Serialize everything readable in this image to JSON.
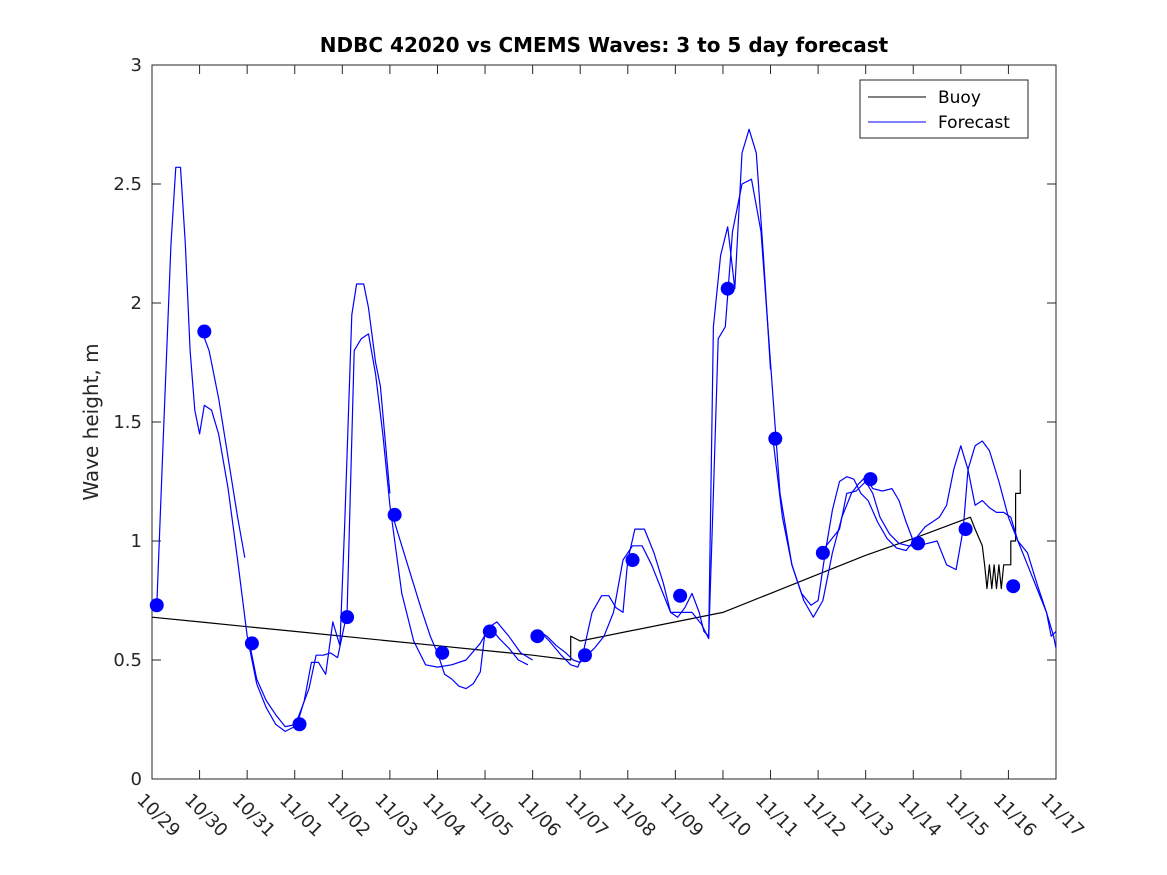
{
  "chart_data": {
    "type": "line",
    "title": "NDBC 42020 vs CMEMS Waves: 3 to 5 day forecast",
    "xlabel": "",
    "ylabel": "Wave height, m",
    "xlim": [
      0,
      19
    ],
    "ylim": [
      0,
      3
    ],
    "grid": false,
    "legend_position": "top-right",
    "x_tick_labels": [
      "10/29",
      "10/30",
      "10/31",
      "11/01",
      "11/02",
      "11/03",
      "11/04",
      "11/05",
      "11/06",
      "11/07",
      "11/08",
      "11/09",
      "11/10",
      "11/11",
      "11/12",
      "11/13",
      "11/14",
      "11/15",
      "11/16",
      "11/17"
    ],
    "y_ticks": [
      0,
      0.5,
      1,
      1.5,
      2,
      2.5,
      3
    ],
    "y_tick_labels": [
      "0",
      "0.5",
      "1",
      "1.5",
      "2",
      "2.5",
      "3"
    ],
    "colors": {
      "buoy": "#000000",
      "forecast": "#0000ff",
      "axes": "#262626"
    },
    "legend": [
      {
        "name": "Buoy",
        "color": "#000000"
      },
      {
        "name": "Forecast",
        "color": "#0000ff"
      }
    ],
    "series": [
      {
        "name": "Buoy",
        "kind": "line",
        "color": "#000000",
        "x": [
          0,
          1,
          2,
          3,
          4,
          5,
          6,
          7,
          8,
          8.8,
          8.8,
          9.0,
          10.0,
          11.0,
          12.0,
          13.0,
          14.0,
          15.0,
          16.0,
          17.2,
          17.3,
          17.45,
          17.5,
          17.55,
          17.6,
          17.65,
          17.7,
          17.75,
          17.8,
          17.85,
          17.9,
          18.0,
          18.05,
          18.05,
          18.1,
          18.15,
          18.15,
          18.25,
          18.25
        ],
        "y": [
          0.68,
          0.66,
          0.64,
          0.62,
          0.6,
          0.58,
          0.56,
          0.54,
          0.52,
          0.5,
          0.6,
          0.58,
          0.62,
          0.66,
          0.7,
          0.78,
          0.86,
          0.94,
          1.01,
          1.1,
          1.05,
          0.98,
          0.9,
          0.8,
          0.9,
          0.8,
          0.9,
          0.8,
          0.9,
          0.8,
          0.9,
          0.9,
          0.9,
          1.0,
          1.0,
          1.0,
          1.2,
          1.2,
          1.3
        ]
      },
      {
        "name": "Forecast",
        "kind": "line",
        "color": "#0000ff",
        "x": [
          0.1,
          0.25,
          0.4,
          0.5,
          0.6,
          0.7,
          0.8,
          0.9,
          1.0,
          1.1,
          1.25,
          1.4,
          1.6,
          1.8,
          2.0,
          2.2,
          2.4,
          2.6,
          2.8,
          3.0
        ],
        "y": [
          0.73,
          1.5,
          2.25,
          2.57,
          2.57,
          2.25,
          1.8,
          1.55,
          1.45,
          1.57,
          1.55,
          1.45,
          1.22,
          0.92,
          0.6,
          0.4,
          0.3,
          0.23,
          0.2,
          0.22
        ]
      },
      {
        "name": "Forecast",
        "kind": "line",
        "color": "#0000ff",
        "x": [
          1.05,
          1.2,
          1.4,
          1.6,
          1.8,
          1.95
        ],
        "y": [
          1.88,
          1.8,
          1.6,
          1.35,
          1.1,
          0.93
        ]
      },
      {
        "name": "Forecast",
        "kind": "line",
        "color": "#0000ff",
        "x": [
          2.05,
          2.2,
          2.4,
          2.6,
          2.8,
          3.05,
          3.2,
          3.35,
          3.5,
          3.65,
          3.8,
          3.95,
          4.05,
          4.2,
          4.3,
          4.45,
          4.55,
          4.7,
          4.8,
          5.0
        ],
        "y": [
          0.57,
          0.42,
          0.33,
          0.27,
          0.22,
          0.23,
          0.33,
          0.49,
          0.49,
          0.44,
          0.66,
          0.56,
          1.07,
          1.95,
          2.08,
          2.08,
          1.98,
          1.75,
          1.65,
          1.2
        ]
      },
      {
        "name": "Forecast",
        "kind": "line",
        "color": "#0000ff",
        "x": [
          3.0,
          3.15,
          3.3,
          3.45,
          3.6,
          3.75,
          3.9,
          4.1,
          4.25,
          4.4,
          4.55,
          4.7,
          4.85,
          5.0,
          5.25,
          5.5,
          5.75,
          6.0,
          6.3,
          6.6,
          6.9,
          7.1,
          7.25,
          7.5,
          7.75,
          8.0
        ],
        "y": [
          0.22,
          0.3,
          0.38,
          0.52,
          0.52,
          0.53,
          0.51,
          0.7,
          1.8,
          1.85,
          1.87,
          1.7,
          1.45,
          1.15,
          0.78,
          0.58,
          0.48,
          0.47,
          0.48,
          0.5,
          0.57,
          0.64,
          0.66,
          0.6,
          0.53,
          0.5
        ]
      },
      {
        "name": "Forecast",
        "kind": "line",
        "color": "#0000ff",
        "x": [
          5.05,
          5.25,
          5.45,
          5.65,
          5.85,
          6.0,
          6.15,
          6.3,
          6.45,
          6.6,
          6.75,
          6.9,
          7.0,
          7.1,
          7.3,
          7.5,
          7.7,
          7.9
        ],
        "y": [
          1.11,
          0.98,
          0.85,
          0.72,
          0.6,
          0.53,
          0.44,
          0.42,
          0.39,
          0.38,
          0.4,
          0.45,
          0.62,
          0.64,
          0.59,
          0.55,
          0.5,
          0.48
        ]
      },
      {
        "name": "Forecast",
        "kind": "line",
        "color": "#0000ff",
        "x": [
          8.0,
          8.15,
          8.35,
          8.6,
          8.8,
          8.95,
          9.05,
          9.25,
          9.45,
          9.6,
          9.75,
          9.9,
          10.0,
          10.15,
          10.35,
          10.55,
          10.75,
          10.9,
          11.05,
          11.2,
          11.35,
          11.55,
          11.7,
          11.8,
          11.9,
          12.05,
          12.2,
          12.4,
          12.6,
          12.8,
          13.0,
          13.2,
          13.45,
          13.7,
          13.9,
          14.1,
          14.3,
          14.5,
          14.7,
          14.85,
          15.0,
          15.15,
          15.35,
          15.55,
          15.7,
          15.85,
          16.0
        ],
        "y": [
          0.6,
          0.62,
          0.58,
          0.52,
          0.48,
          0.47,
          0.52,
          0.7,
          0.77,
          0.77,
          0.72,
          0.7,
          0.92,
          1.05,
          1.05,
          0.95,
          0.82,
          0.7,
          0.7,
          0.7,
          0.7,
          0.65,
          0.59,
          1.2,
          1.85,
          1.9,
          2.3,
          2.5,
          2.52,
          2.3,
          1.75,
          1.2,
          0.9,
          0.75,
          0.68,
          0.75,
          0.95,
          1.1,
          1.2,
          1.24,
          1.27,
          1.22,
          1.21,
          1.22,
          1.17,
          1.08,
          1.0
        ]
      },
      {
        "name": "Forecast",
        "kind": "line",
        "color": "#0000ff",
        "x": [
          8.15,
          8.3,
          8.5,
          8.7,
          8.85,
          9.0,
          9.15,
          9.3,
          9.5,
          9.7,
          9.9,
          10.1,
          10.3,
          10.5,
          10.7,
          10.9,
          11.05,
          11.2,
          11.35,
          11.5,
          11.6,
          11.7,
          11.8,
          11.95,
          12.1,
          12.25,
          12.4,
          12.55,
          12.7,
          12.85,
          13.0
        ],
        "y": [
          0.62,
          0.6,
          0.56,
          0.53,
          0.5,
          0.49,
          0.52,
          0.55,
          0.6,
          0.7,
          0.92,
          0.98,
          0.98,
          0.9,
          0.8,
          0.7,
          0.68,
          0.72,
          0.78,
          0.7,
          0.62,
          0.6,
          1.9,
          2.2,
          2.32,
          2.06,
          2.63,
          2.73,
          2.63,
          2.2,
          1.72
        ]
      },
      {
        "name": "Forecast",
        "kind": "line",
        "color": "#0000ff",
        "x": [
          13.05,
          13.25,
          13.45,
          13.65,
          13.85,
          14.0,
          14.15,
          14.3,
          14.45,
          14.6,
          14.75,
          14.9,
          15.05,
          15.25,
          15.45,
          15.65,
          15.85,
          16.05,
          16.25,
          16.4,
          16.55,
          16.7,
          16.85,
          17.0,
          17.15,
          17.3,
          17.45,
          17.6,
          17.75,
          17.9,
          18.05,
          18.2,
          18.4,
          18.6,
          18.8,
          18.9,
          19.0
        ],
        "y": [
          1.43,
          1.1,
          0.9,
          0.78,
          0.73,
          0.75,
          0.95,
          1.13,
          1.25,
          1.27,
          1.26,
          1.2,
          1.17,
          1.08,
          1.01,
          0.97,
          0.96,
          1.01,
          1.06,
          1.08,
          1.1,
          1.15,
          1.3,
          1.4,
          1.3,
          1.15,
          1.17,
          1.14,
          1.12,
          1.12,
          1.1,
          1.0,
          0.9,
          0.8,
          0.7,
          0.6,
          0.62
        ]
      },
      {
        "name": "Forecast",
        "kind": "line",
        "color": "#0000ff",
        "x": [
          14.05,
          14.25,
          14.45,
          14.6,
          14.8,
          15.0,
          15.15,
          15.3,
          15.5,
          15.7,
          15.9,
          16.1,
          16.3,
          16.5,
          16.7,
          16.9,
          17.05,
          17.15,
          17.3,
          17.45,
          17.6,
          17.8,
          18.0,
          18.2,
          18.4,
          18.6,
          18.8,
          18.95,
          19.0
        ],
        "y": [
          0.95,
          1.0,
          1.05,
          1.2,
          1.21,
          1.25,
          1.2,
          1.1,
          1.03,
          0.99,
          0.98,
          0.98,
          0.99,
          1.0,
          0.9,
          0.88,
          1.05,
          1.3,
          1.4,
          1.42,
          1.38,
          1.25,
          1.1,
          1.0,
          0.95,
          0.82,
          0.7,
          0.6,
          0.55
        ]
      },
      {
        "name": "Forecast",
        "kind": "markers",
        "color": "#0000ff",
        "x": [
          0.1,
          1.1,
          2.1,
          3.1,
          4.1,
          5.1,
          6.1,
          7.1,
          8.1,
          9.1,
          10.1,
          11.1,
          12.1,
          13.1,
          14.1,
          15.1,
          16.1,
          17.1,
          18.1
        ],
        "y": [
          0.73,
          1.88,
          0.57,
          0.23,
          0.68,
          1.11,
          0.53,
          0.62,
          0.6,
          0.52,
          0.92,
          0.77,
          2.06,
          1.43,
          0.95,
          1.26,
          0.99,
          1.05,
          0.81
        ]
      }
    ]
  }
}
